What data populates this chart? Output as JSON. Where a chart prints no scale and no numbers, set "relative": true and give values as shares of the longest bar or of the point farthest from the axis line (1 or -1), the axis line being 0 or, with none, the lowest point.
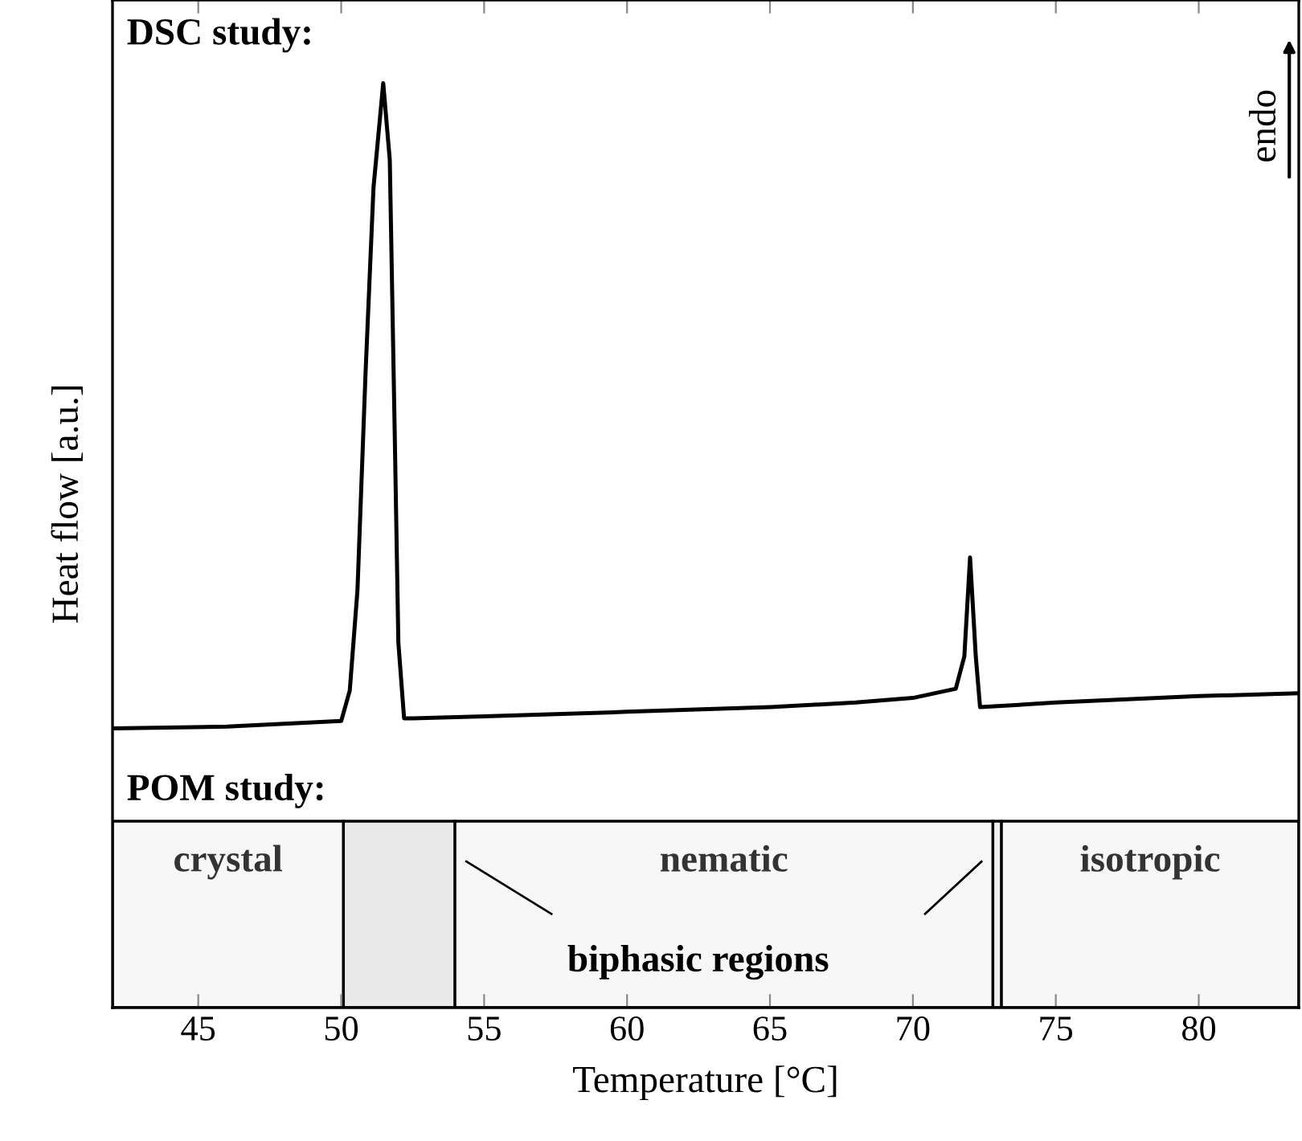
{
  "chart_data": {
    "type": "line",
    "relative": true,
    "xlabel": "Temperature [°C]",
    "ylabel": "Heat flow [a.u.]",
    "annotations": [
      "DSC study:",
      "POM study:",
      "biphasic regions",
      "endo"
    ],
    "xlim": [
      42,
      83.5
    ],
    "xticks": [
      45,
      50,
      55,
      60,
      65,
      70,
      75,
      80
    ],
    "tick_labels": "x",
    "grid": false,
    "marker": "none",
    "line_style": "solid",
    "series": [
      {
        "color": "#000000",
        "x": [
          42,
          46,
          50,
          50.3,
          50.57,
          50.85,
          51.13,
          51.47,
          51.7,
          51.87,
          52.0,
          52.2,
          52.5,
          55,
          60,
          65,
          68,
          70,
          71.5,
          71.8,
          72.0,
          72.2,
          72.35,
          75,
          80,
          83.5
        ],
        "values": [
          0.302,
          0.304,
          0.31,
          0.343,
          0.452,
          0.685,
          0.887,
          1,
          0.917,
          0.626,
          0.395,
          0.313,
          0.313,
          0.315,
          0.32,
          0.325,
          0.33,
          0.335,
          0.345,
          0.38,
          0.487,
          0.38,
          0.325,
          0.33,
          0.337,
          0.34
        ]
      }
    ],
    "bands": [
      {
        "axis": "x",
        "from": 42,
        "to": 50.08,
        "label": "crystal",
        "color": "#f7f7f7"
      },
      {
        "axis": "x",
        "from": 50.08,
        "to": 53.98,
        "label": null,
        "color": "#e9e9e9"
      },
      {
        "axis": "x",
        "from": 53.98,
        "to": 72.8,
        "label": "nematic",
        "color": "#f7f7f7"
      },
      {
        "axis": "x",
        "from": 72.8,
        "to": 73.1,
        "label": null,
        "color": "#f0f0f0"
      },
      {
        "axis": "x",
        "from": 73.1,
        "to": 83.5,
        "label": "isotropic",
        "color": "#f7f7f7"
      }
    ]
  }
}
